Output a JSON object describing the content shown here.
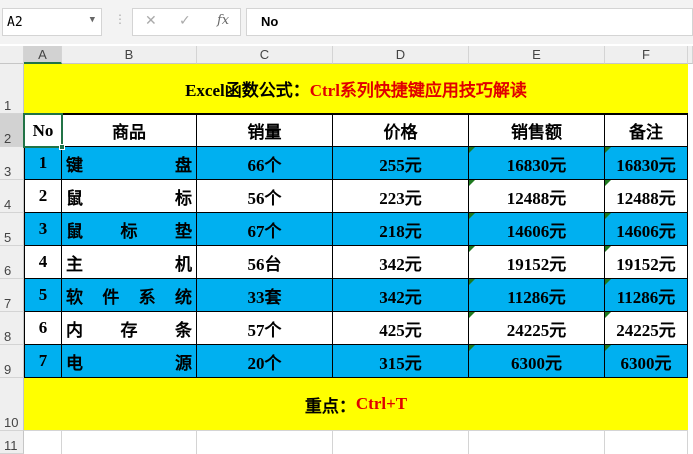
{
  "formula_bar": {
    "name_box": "A2",
    "cancel_icon": "✕",
    "enter_icon": "✓",
    "fx_label": "fx",
    "content": "No"
  },
  "columns": [
    "A",
    "B",
    "C",
    "D",
    "E",
    "F"
  ],
  "rows": [
    "1",
    "2",
    "3",
    "4",
    "5",
    "6",
    "7",
    "8",
    "9",
    "10",
    "11"
  ],
  "title": {
    "black": "Excel函数公式：",
    "red": "Ctrl系列快捷键应用技巧解读"
  },
  "headers": [
    "No",
    "商品",
    "销量",
    "价格",
    "销售额",
    "备注"
  ],
  "data": [
    [
      "1",
      "键盘",
      "66个",
      "255元",
      "16830元",
      "16830元"
    ],
    [
      "2",
      "鼠标",
      "56个",
      "223元",
      "12488元",
      "12488元"
    ],
    [
      "3",
      "鼠标垫",
      "67个",
      "218元",
      "14606元",
      "14606元"
    ],
    [
      "4",
      "主机",
      "56台",
      "342元",
      "19152元",
      "19152元"
    ],
    [
      "5",
      "软件系统",
      "33套",
      "342元",
      "11286元",
      "11286元"
    ],
    [
      "6",
      "内存条",
      "57个",
      "425元",
      "24225元",
      "24225元"
    ],
    [
      "7",
      "电源",
      "20个",
      "315元",
      "6300元",
      "6300元"
    ]
  ],
  "footer": {
    "black": "重点：",
    "red": "Ctrl+T"
  },
  "colors": {
    "blue": "#00B0F0",
    "yellow": "#FFFF00",
    "red": "#E00000"
  }
}
